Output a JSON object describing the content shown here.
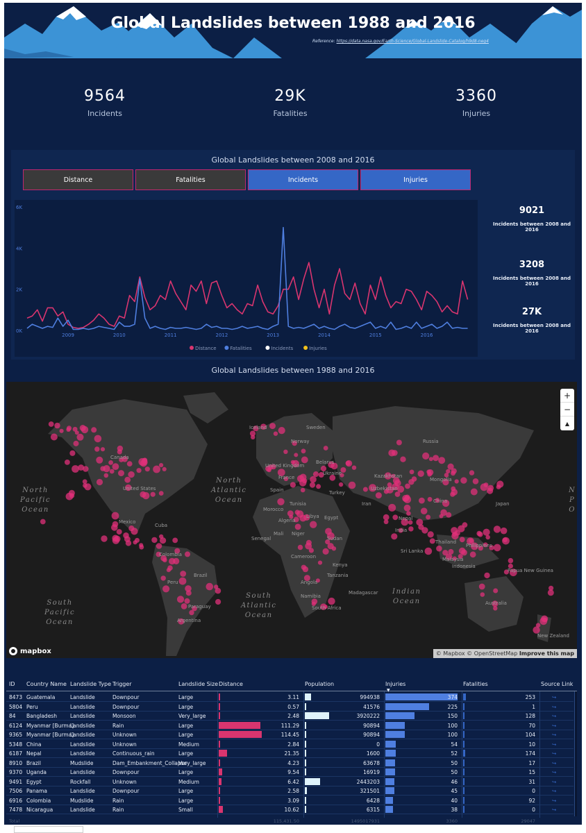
{
  "header": {
    "title": "Global Landslides between 1988 and 2016",
    "reference_label": "Reference:",
    "reference_link": "https://data.nasa.gov/Earth-Science/Global-Landslide-Catalog/h9d8-neg4"
  },
  "kpis": [
    {
      "value": "9564",
      "label": "Incidents"
    },
    {
      "value": "29K",
      "label": "Fatalities"
    },
    {
      "value": "3360",
      "label": "Injuries"
    }
  ],
  "trend": {
    "title": "Global Landslides between 2008 and 2016",
    "buttons": [
      {
        "label": "Distance",
        "state": "off"
      },
      {
        "label": "Fatalities",
        "state": "off"
      },
      {
        "label": "Incidents",
        "state": "on"
      },
      {
        "label": "Injuries",
        "state": "on"
      }
    ],
    "side_cards": [
      {
        "value": "9021",
        "label": "Incidents between 2008 and 2016"
      },
      {
        "value": "3208",
        "label": "Incidents between 2008 and 2016"
      },
      {
        "value": "27K",
        "label": "Incidents between 2008 and 2016"
      }
    ]
  },
  "chart_data": {
    "type": "line",
    "title": "",
    "x_ticks": [
      "2009",
      "2010",
      "2011",
      "2012",
      "2013",
      "2014",
      "2015",
      "2016"
    ],
    "y_ticks": [
      "0K",
      "2K",
      "4K",
      "6K"
    ],
    "ylim": [
      0,
      6000
    ],
    "xlim": [
      2008.2,
      2016.9
    ],
    "legend": [
      "Distance",
      "Fatalities",
      "Incidents",
      "Injuries"
    ],
    "legend_placement": "bottom",
    "colors": {
      "Distance": "#d9356f",
      "Fatalities": "#4f7fe0",
      "Incidents": "#ffffff",
      "Injuries": "#f2c11c"
    },
    "series": [
      {
        "name": "Distance",
        "x": [
          2008.2,
          2008.3,
          2008.4,
          2008.5,
          2008.6,
          2008.7,
          2008.8,
          2008.9,
          2009.0,
          2009.1,
          2009.2,
          2009.3,
          2009.4,
          2009.5,
          2009.6,
          2009.7,
          2009.8,
          2009.9,
          2010.0,
          2010.1,
          2010.2,
          2010.3,
          2010.4,
          2010.5,
          2010.6,
          2010.7,
          2010.8,
          2010.9,
          2011.0,
          2011.1,
          2011.2,
          2011.3,
          2011.4,
          2011.5,
          2011.6,
          2011.7,
          2011.8,
          2011.9,
          2012.0,
          2012.1,
          2012.2,
          2012.3,
          2012.4,
          2012.5,
          2012.6,
          2012.7,
          2012.8,
          2012.9,
          2013.0,
          2013.1,
          2013.2,
          2013.3,
          2013.4,
          2013.5,
          2013.6,
          2013.7,
          2013.8,
          2013.9,
          2014.0,
          2014.1,
          2014.2,
          2014.3,
          2014.4,
          2014.5,
          2014.6,
          2014.7,
          2014.8,
          2014.9,
          2015.0,
          2015.1,
          2015.2,
          2015.3,
          2015.4,
          2015.5,
          2015.6,
          2015.7,
          2015.8,
          2015.9,
          2016.0,
          2016.1,
          2016.2,
          2016.3,
          2016.4,
          2016.5,
          2016.6,
          2016.7,
          2016.8
        ],
        "values": [
          600,
          700,
          1000,
          450,
          1100,
          1100,
          700,
          900,
          300,
          150,
          100,
          150,
          300,
          500,
          800,
          600,
          300,
          200,
          700,
          600,
          1700,
          1400,
          2600,
          1600,
          1000,
          1200,
          1700,
          1500,
          2400,
          1800,
          1400,
          1000,
          2200,
          1900,
          2400,
          1300,
          2300,
          2400,
          1700,
          1100,
          1300,
          1000,
          800,
          1300,
          1200,
          2200,
          1400,
          900,
          800,
          1200,
          2000,
          2000,
          2600,
          1500,
          2500,
          3300,
          2000,
          1100,
          2000,
          800,
          2200,
          3000,
          1800,
          1500,
          2300,
          1300,
          800,
          2200,
          1500,
          2600,
          1700,
          1100,
          1400,
          1300,
          2000,
          1900,
          1500,
          1000,
          1900,
          1700,
          1400,
          900,
          1200,
          900,
          800,
          2400,
          1500
        ]
      },
      {
        "name": "Fatalities",
        "x": [
          2008.2,
          2008.3,
          2008.4,
          2008.5,
          2008.6,
          2008.7,
          2008.8,
          2008.9,
          2009.0,
          2009.1,
          2009.2,
          2009.3,
          2009.4,
          2009.5,
          2009.6,
          2009.7,
          2009.8,
          2009.9,
          2010.0,
          2010.1,
          2010.2,
          2010.3,
          2010.4,
          2010.5,
          2010.6,
          2010.7,
          2010.8,
          2010.9,
          2011.0,
          2011.1,
          2011.2,
          2011.3,
          2011.4,
          2011.5,
          2011.6,
          2011.7,
          2011.8,
          2011.9,
          2012.0,
          2012.1,
          2012.2,
          2012.3,
          2012.4,
          2012.5,
          2012.6,
          2012.7,
          2012.8,
          2012.9,
          2013.0,
          2013.1,
          2013.2,
          2013.3,
          2013.4,
          2013.5,
          2013.6,
          2013.7,
          2013.8,
          2013.9,
          2014.0,
          2014.1,
          2014.2,
          2014.3,
          2014.4,
          2014.5,
          2014.6,
          2014.7,
          2014.8,
          2014.9,
          2015.0,
          2015.1,
          2015.2,
          2015.3,
          2015.4,
          2015.5,
          2015.6,
          2015.7,
          2015.8,
          2015.9,
          2016.0,
          2016.1,
          2016.2,
          2016.3,
          2016.4,
          2016.5,
          2016.6,
          2016.7,
          2016.8
        ],
        "values": [
          100,
          300,
          200,
          100,
          200,
          150,
          600,
          200,
          500,
          50,
          50,
          100,
          50,
          100,
          200,
          150,
          100,
          50,
          400,
          200,
          200,
          300,
          2500,
          600,
          100,
          200,
          100,
          50,
          150,
          100,
          100,
          150,
          100,
          50,
          100,
          300,
          150,
          200,
          100,
          100,
          50,
          100,
          200,
          100,
          150,
          200,
          100,
          50,
          200,
          300,
          5000,
          200,
          100,
          150,
          100,
          200,
          300,
          100,
          200,
          100,
          50,
          200,
          300,
          150,
          100,
          200,
          300,
          400,
          100,
          200,
          100,
          400,
          50,
          100,
          200,
          100,
          400,
          100,
          200,
          300,
          100,
          200,
          400,
          100,
          150,
          100,
          100
        ]
      },
      {
        "name": "Incidents",
        "x": [],
        "values": []
      },
      {
        "name": "Injuries",
        "x": [],
        "values": []
      }
    ]
  },
  "map": {
    "title": "Global Landslides between 1988 and 2016",
    "dot_color": "#e0307a",
    "attribution_prefix": "© Mapbox © OpenStreetMap",
    "attribution_link": "Improve this map",
    "logo": "mapbox",
    "zoom_in": "+",
    "zoom_out": "−",
    "compass": "▲",
    "oceans": [
      {
        "text": "North\nPacific\nOcean",
        "id": "npo"
      },
      {
        "text": "North\nAtlantic\nOcean",
        "id": "nao"
      },
      {
        "text": "South\nPacific\nOcean",
        "id": "spo"
      },
      {
        "text": "South\nAtlantic\nOcean",
        "id": "sao"
      },
      {
        "text": "Indian\nOcean",
        "id": "io"
      },
      {
        "text": "N\nP\nO",
        "id": "npo2"
      }
    ],
    "labels": [
      "Canada",
      "United States",
      "Mexico",
      "Cuba",
      "Colombia",
      "Brazil",
      "Peru",
      "Paraguay",
      "Argentina",
      "Iceland",
      "Sweden",
      "Norway",
      "United Kingdom",
      "Belarus",
      "Ukraine",
      "France",
      "Spain",
      "Tunisia",
      "Morocco",
      "Libya",
      "Egypt",
      "Algeria",
      "Mali",
      "Niger",
      "Senegal",
      "Sudan",
      "Cameroon",
      "Kenya",
      "Tanzania",
      "Angola",
      "Namibia",
      "Madagascar",
      "South Africa",
      "Turkey",
      "Iran",
      "Uzbekistan",
      "Kazakhstan",
      "Mongolia",
      "China",
      "Nepal",
      "India",
      "Sri Lanka",
      "Thailand",
      "Malaysia",
      "Indonesia",
      "Philippines",
      "Papua New Guinea",
      "Australia",
      "New Zealand",
      "Russia",
      "Japan"
    ]
  },
  "table": {
    "columns": [
      "ID",
      "Country Name",
      "Landslide Type",
      "Trigger",
      "Landslide Size",
      "Distance",
      "Population",
      "Injuries",
      "Fatalities",
      "Source Link"
    ],
    "max": {
      "distance": 115,
      "population": 3920222,
      "injuries": 374,
      "fatalities": 253
    },
    "rows": [
      {
        "id": "8473",
        "country": "Guatemala",
        "type": "Landslide",
        "trigger": "Downpour",
        "size": "Large",
        "distance": "3.11",
        "population": "994938",
        "injuries": "374",
        "fatalities": "253",
        "link": "↪"
      },
      {
        "id": "5804",
        "country": "Peru",
        "type": "Landslide",
        "trigger": "Downpour",
        "size": "Large",
        "distance": "0.57",
        "population": "41576",
        "injuries": "225",
        "fatalities": "1",
        "link": "↪"
      },
      {
        "id": "84",
        "country": "Bangladesh",
        "type": "Landslide",
        "trigger": "Monsoon",
        "size": "Very_large",
        "distance": "2.48",
        "population": "3920222",
        "injuries": "150",
        "fatalities": "128",
        "link": "↪"
      },
      {
        "id": "6124",
        "country": "Myanmar [Burma]",
        "type": "Landslide",
        "trigger": "Rain",
        "size": "Large",
        "distance": "111.29",
        "population": "90894",
        "injuries": "100",
        "fatalities": "70",
        "link": "↪"
      },
      {
        "id": "9365",
        "country": "Myanmar [Burma]",
        "type": "Landslide",
        "trigger": "Unknown",
        "size": "Large",
        "distance": "114.45",
        "population": "90894",
        "injuries": "100",
        "fatalities": "104",
        "link": "↪"
      },
      {
        "id": "5348",
        "country": "China",
        "type": "Landslide",
        "trigger": "Unknown",
        "size": "Medium",
        "distance": "2.84",
        "population": "0",
        "injuries": "54",
        "fatalities": "10",
        "link": "↪"
      },
      {
        "id": "6187",
        "country": "Nepal",
        "type": "Landslide",
        "trigger": "Continuous_rain",
        "size": "Large",
        "distance": "21.35",
        "population": "1600",
        "injuries": "52",
        "fatalities": "174",
        "link": "↪"
      },
      {
        "id": "8910",
        "country": "Brazil",
        "type": "Mudslide",
        "trigger": "Dam_Embankment_Collapse",
        "size": "Very_large",
        "distance": "4.23",
        "population": "63678",
        "injuries": "50",
        "fatalities": "17",
        "link": "↪"
      },
      {
        "id": "9370",
        "country": "Uganda",
        "type": "Landslide",
        "trigger": "Downpour",
        "size": "Large",
        "distance": "9.54",
        "population": "16919",
        "injuries": "50",
        "fatalities": "15",
        "link": "↪"
      },
      {
        "id": "9491",
        "country": "Egypt",
        "type": "Rockfall",
        "trigger": "Unknown",
        "size": "Medium",
        "distance": "6.42",
        "population": "2443203",
        "injuries": "46",
        "fatalities": "31",
        "link": "↪"
      },
      {
        "id": "7506",
        "country": "Panama",
        "type": "Landslide",
        "trigger": "Downpour",
        "size": "Large",
        "distance": "2.58",
        "population": "321501",
        "injuries": "45",
        "fatalities": "0",
        "link": "↪"
      },
      {
        "id": "6916",
        "country": "Colombia",
        "type": "Mudslide",
        "trigger": "Rain",
        "size": "Large",
        "distance": "3.09",
        "population": "6428",
        "injuries": "40",
        "fatalities": "92",
        "link": "↪"
      },
      {
        "id": "7478",
        "country": "Nicaragua",
        "type": "Landslide",
        "trigger": "Rain",
        "size": "Small",
        "distance": "10.62",
        "population": "6315",
        "injuries": "38",
        "fatalities": "0",
        "link": "↪"
      }
    ],
    "total": {
      "label": "Total",
      "distance": "115,431.50",
      "population": "1495017931",
      "injuries": "3360",
      "fatalities": "29047"
    }
  },
  "colors": {
    "background": "#0c1f45",
    "panel": "#0f2650",
    "accent_pink": "#d9356f",
    "accent_blue": "#4f7fe0",
    "bar_population": "#dff3fb"
  }
}
